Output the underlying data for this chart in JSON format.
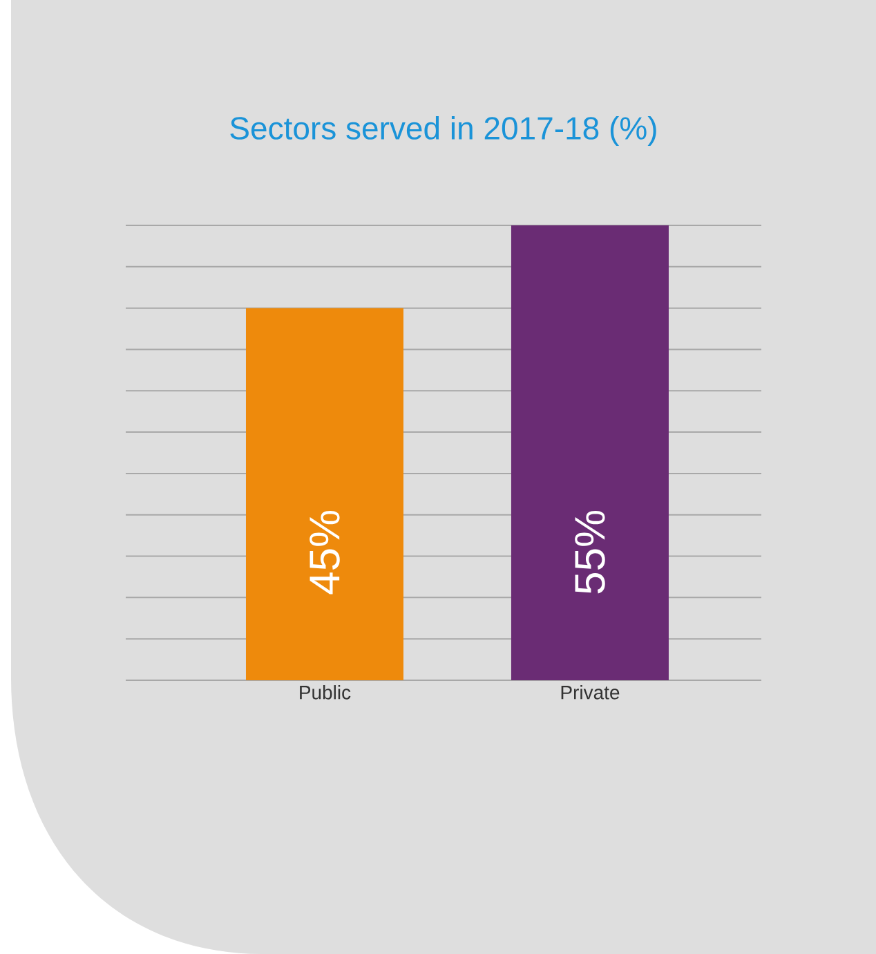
{
  "chart_data": {
    "type": "bar",
    "title": "Sectors served in 2017-18 (%)",
    "categories": [
      "Public",
      "Private"
    ],
    "values": [
      45,
      55
    ],
    "colors": [
      "#ee8a0c",
      "#6a2c74"
    ],
    "value_labels": [
      "45%",
      "55%"
    ],
    "ylim": [
      0,
      55
    ],
    "yticks": [
      0,
      5,
      10,
      15,
      20,
      25,
      30,
      35,
      40,
      45,
      50,
      55
    ],
    "grid": "y",
    "tick_labels": "x"
  }
}
